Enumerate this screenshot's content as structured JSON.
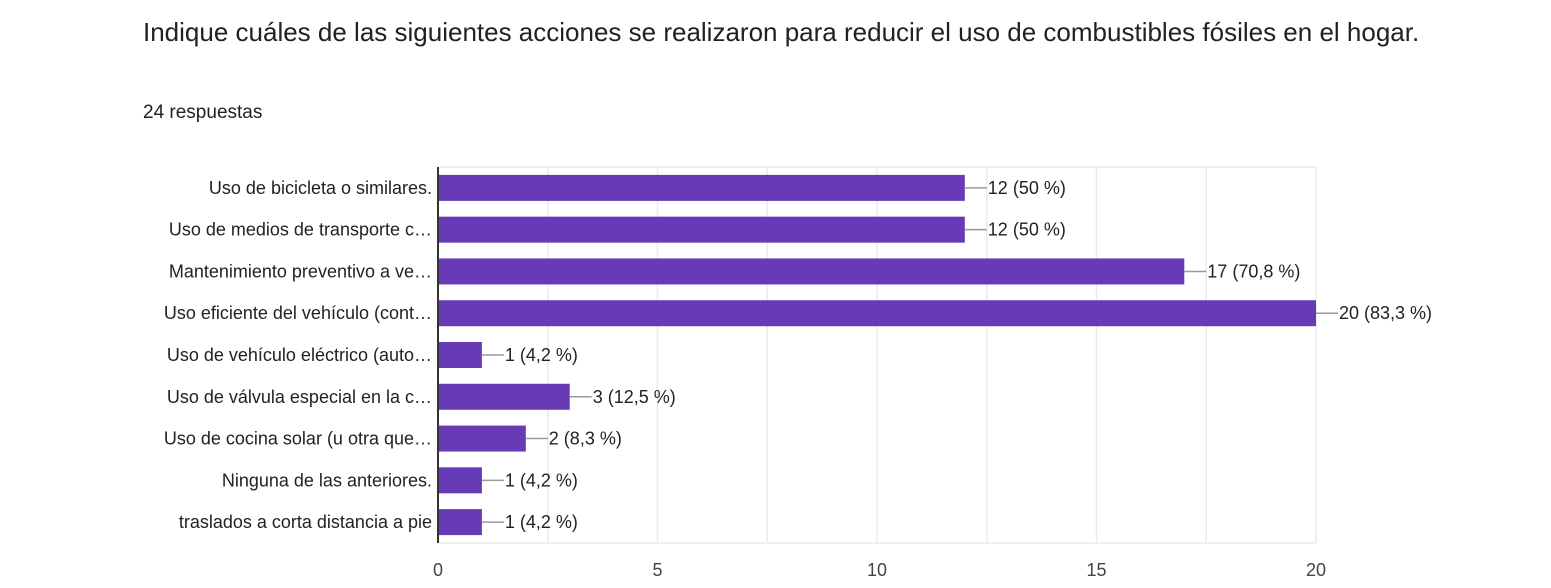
{
  "header": {
    "title": "Indique cuáles de las siguientes acciones se realizaron para reducir el uso de combustibles fósiles en el hogar.",
    "responses": "24 respuestas"
  },
  "chart_data": {
    "type": "bar",
    "orientation": "horizontal",
    "categories": [
      "Uso de bicicleta o similares.",
      "Uso de medios de transporte c…",
      "Mantenimiento preventivo a ve…",
      "Uso eficiente del vehículo (cont…",
      "Uso de vehículo eléctrico (auto…",
      "Uso de válvula especial en la c…",
      "Uso de cocina solar (u otra que…",
      "Ninguna de las anteriores.",
      "traslados a corta distancia a pie"
    ],
    "values": [
      12,
      12,
      17,
      20,
      1,
      3,
      2,
      1,
      1
    ],
    "data_labels": [
      "12 (50 %)",
      "12 (50 %)",
      "17 (70,8 %)",
      "20 (83,3 %)",
      "1 (4,2 %)",
      "3 (12,5 %)",
      "2 (8,3 %)",
      "1 (4,2 %)",
      "1 (4,2 %)"
    ],
    "xlim": [
      0,
      20
    ],
    "xticks": [
      "0",
      "5",
      "10",
      "15",
      "20"
    ],
    "grid": true,
    "bar_color": "#673ab7"
  }
}
